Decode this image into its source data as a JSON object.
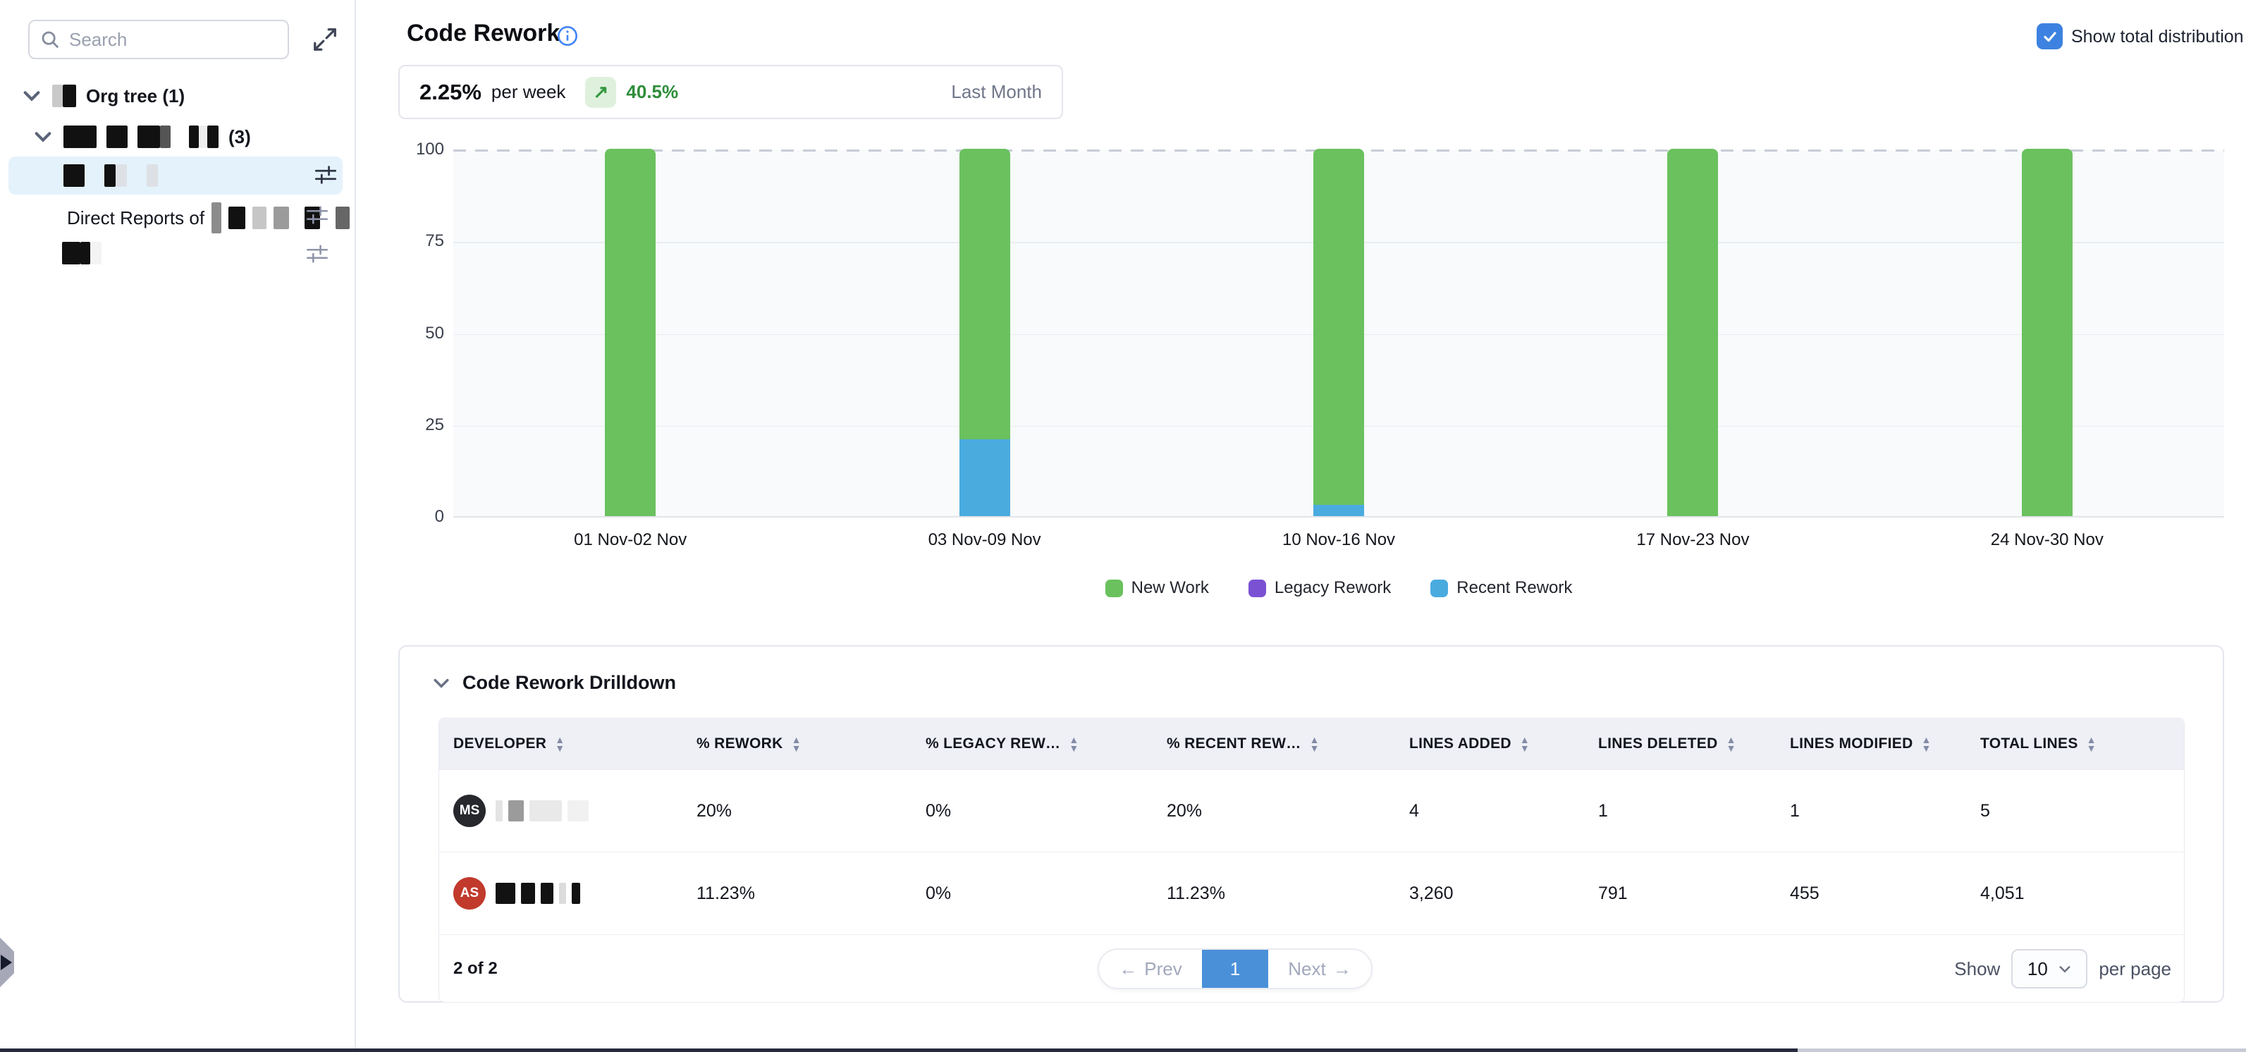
{
  "sidebar": {
    "search_placeholder": "Search",
    "tree": {
      "org_tree_label": "Org tree (1)",
      "group_count": "(3)",
      "direct_reports_label": "Direct Reports of"
    }
  },
  "header": {
    "title": "Code Rework",
    "show_total_distribution_label": "Show total distribution",
    "checkbox_checked": true
  },
  "summary": {
    "value": "2.25%",
    "unit": "per week",
    "trend_icon": "up-right-arrow",
    "trend": "40.5%",
    "period": "Last Month"
  },
  "chart_data": {
    "type": "bar",
    "stacked": true,
    "categories": [
      "01 Nov-02 Nov",
      "03 Nov-09 Nov",
      "10 Nov-16 Nov",
      "17 Nov-23 Nov",
      "24 Nov-30 Nov"
    ],
    "series": [
      {
        "name": "New Work",
        "color": "#6ac15e",
        "values": [
          100,
          79,
          97,
          100,
          100
        ]
      },
      {
        "name": "Legacy Rework",
        "color": "#7b51d3",
        "values": [
          0,
          0,
          0,
          0,
          0
        ]
      },
      {
        "name": "Recent Rework",
        "color": "#4aabdf",
        "values": [
          0,
          21,
          3,
          0,
          0
        ]
      }
    ],
    "ylabel": "",
    "xlabel": "",
    "ylim": [
      0,
      100
    ],
    "yticks": [
      0,
      25,
      50,
      75,
      100
    ],
    "grid": true,
    "dashed_reference_line_y": 100,
    "legend_position": "bottom"
  },
  "drilldown": {
    "title": "Code Rework Drilldown",
    "columns": [
      "DEVELOPER",
      "% REWORK",
      "% LEGACY REW…",
      "% RECENT REW…",
      "LINES ADDED",
      "LINES DELETED",
      "LINES MODIFIED",
      "TOTAL LINES"
    ],
    "rows": [
      {
        "initials": "MS",
        "avatar_color": "#26282e",
        "name_redacted": true,
        "name_blocks": [
          [
            10,
            "#e4e4e4"
          ],
          [
            22,
            "#9b9b9b"
          ],
          [
            46,
            "#e9e9e9"
          ],
          [
            30,
            "#f1f1f1"
          ]
        ],
        "rework": "20%",
        "legacy": "0%",
        "recent": "20%",
        "added": "4",
        "deleted": "1",
        "modified": "1",
        "total": "5"
      },
      {
        "initials": "AS",
        "avatar_color": "#c13a2c",
        "name_redacted": true,
        "name_blocks": [
          [
            28,
            "#121212"
          ],
          [
            20,
            "#121212"
          ],
          [
            18,
            "#121212"
          ],
          [
            10,
            "#dcdcdc"
          ],
          [
            12,
            "#121212"
          ]
        ],
        "rework": "11.23%",
        "legacy": "0%",
        "recent": "11.23%",
        "added": "3,260",
        "deleted": "791",
        "modified": "455",
        "total": "4,051"
      }
    ],
    "footer": {
      "count": "2 of 2",
      "prev": "Prev",
      "page": "1",
      "next": "Next",
      "show": "Show",
      "page_size": "10",
      "per_page": "per page"
    }
  }
}
